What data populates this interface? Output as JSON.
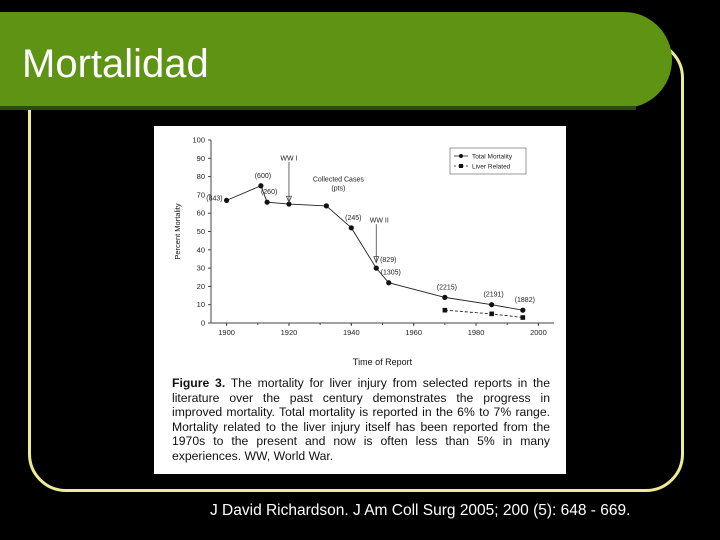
{
  "slide": {
    "title": "Mortalidad",
    "citation": "J David Richardson. J Am Coll Surg 2005; 200 (5): 648 - 669."
  },
  "figure": {
    "caption_label": "Figure 3.",
    "caption_text": "The mortality for liver injury from selected reports in the literature over the past century demonstrates the progress in improved mortality. Total mortality is reported in the 6% to 7% range. Mortality related to the liver injury itself has been reported from the 1970s to the present and now is often less than 5% in many experiences. WW, World War."
  },
  "chart_data": {
    "type": "line",
    "xlabel": "Time of Report",
    "ylabel": "Percent Mortality",
    "xlim": [
      1895,
      2005
    ],
    "ylim": [
      0,
      100
    ],
    "xticks": [
      1900,
      1920,
      1940,
      1960,
      1980,
      2000
    ],
    "yticks": [
      0,
      10,
      20,
      30,
      40,
      50,
      60,
      70,
      80,
      90,
      100
    ],
    "legend_position": "top-right",
    "series": [
      {
        "name": "Total Mortality",
        "marker": "circle",
        "line": "solid",
        "points": [
          {
            "x": 1900,
            "y": 67,
            "label": "(843)"
          },
          {
            "x": 1911,
            "y": 75,
            "label": "(600)"
          },
          {
            "x": 1913,
            "y": 66,
            "label": "(260)"
          },
          {
            "x": 1920,
            "y": 65,
            "label": ""
          },
          {
            "x": 1932,
            "y": 64,
            "label": ""
          },
          {
            "x": 1940,
            "y": 52,
            "label": "(245)"
          },
          {
            "x": 1948,
            "y": 30,
            "label": ""
          },
          {
            "x": 1952,
            "y": 22,
            "label": "(1305)"
          },
          {
            "x": 1970,
            "y": 14,
            "label": "(2215)"
          },
          {
            "x": 1985,
            "y": 10,
            "label": "(2191)"
          },
          {
            "x": 1995,
            "y": 7,
            "label": "(1882)"
          }
        ]
      },
      {
        "name": "Liver Related",
        "marker": "square",
        "line": "dashed",
        "points": [
          {
            "x": 1970,
            "y": 7,
            "label": ""
          },
          {
            "x": 1985,
            "y": 5,
            "label": ""
          },
          {
            "x": 1995,
            "y": 3,
            "label": ""
          }
        ]
      }
    ],
    "annotations": [
      {
        "text": "WW I",
        "x": 1920,
        "y": 66,
        "arrow": true
      },
      {
        "text": "WW II",
        "x": 1948,
        "y": 33,
        "arrow": true
      },
      {
        "text": "(829)",
        "x": 1948,
        "y": 30,
        "arrow": false
      },
      {
        "text": "Collected Cases",
        "x": 1932,
        "y": 64,
        "arrow": false
      },
      {
        "text": "(pts)",
        "x": 1932,
        "y": 64,
        "arrow": false
      }
    ]
  }
}
